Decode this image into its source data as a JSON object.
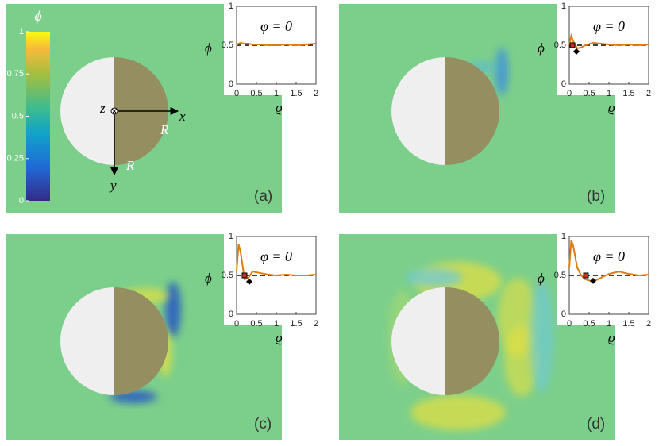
{
  "colorbar": {
    "label": "ϕ",
    "lim": [
      0,
      1
    ],
    "ticks": [
      0,
      0.25,
      0.5,
      0.75,
      1
    ]
  },
  "schematic": {
    "z": "z",
    "x": "x",
    "y": "y",
    "r_x": "R",
    "r_y": "R"
  },
  "chart_data": [
    {
      "type": "line",
      "panel_label": "(a)",
      "annotation": "φ = 0",
      "xlabel": "ϱ",
      "ylabel": "ϕ",
      "xlim": [
        0,
        2
      ],
      "ylim": [
        0,
        1
      ],
      "xticks": [
        0,
        0.5,
        1,
        1.5,
        2
      ],
      "yticks": [
        0,
        0.5,
        1
      ],
      "reference": 0.5,
      "x": [
        0,
        0.05,
        0.1,
        0.2,
        0.3,
        0.4,
        0.6,
        0.8,
        1,
        1.25,
        1.5,
        1.75,
        2
      ],
      "series": [
        {
          "color": "#e07b10",
          "values": [
            0.5,
            0.52,
            0.53,
            0.52,
            0.52,
            0.51,
            0.51,
            0.5,
            0.5,
            0.51,
            0.5,
            0.51,
            0.52
          ]
        }
      ]
    },
    {
      "type": "line",
      "panel_label": "(b)",
      "annotation": "φ = 0",
      "xlabel": "ϱ",
      "ylabel": "ϕ",
      "xlim": [
        0,
        2
      ],
      "ylim": [
        0,
        1
      ],
      "xticks": [
        0,
        0.5,
        1,
        1.5,
        2
      ],
      "yticks": [
        0,
        0.5,
        1
      ],
      "reference": 0.5,
      "x": [
        0,
        0.05,
        0.1,
        0.2,
        0.3,
        0.4,
        0.6,
        0.8,
        1,
        1.25,
        1.5,
        1.75,
        2
      ],
      "series": [
        {
          "color": "#e07b10",
          "values": [
            0.5,
            0.62,
            0.55,
            0.46,
            0.47,
            0.5,
            0.53,
            0.52,
            0.51,
            0.5,
            0.51,
            0.5,
            0.51
          ]
        }
      ],
      "square": {
        "x": 0.08,
        "y": 0.5
      },
      "diamond": {
        "x": 0.18,
        "y": 0.42
      }
    },
    {
      "type": "line",
      "panel_label": "(c)",
      "annotation": "φ = 0",
      "xlabel": "ϱ",
      "ylabel": "ϕ",
      "xlim": [
        0,
        2
      ],
      "ylim": [
        0,
        1
      ],
      "xticks": [
        0,
        0.5,
        1,
        1.5,
        2
      ],
      "yticks": [
        0,
        0.5,
        1
      ],
      "reference": 0.5,
      "x": [
        0,
        0.05,
        0.1,
        0.2,
        0.3,
        0.4,
        0.6,
        0.8,
        1,
        1.25,
        1.5,
        1.75,
        2
      ],
      "series": [
        {
          "color": "#e07b10",
          "values": [
            0.55,
            0.9,
            0.8,
            0.45,
            0.47,
            0.55,
            0.53,
            0.51,
            0.5,
            0.51,
            0.5,
            0.5,
            0.51
          ]
        }
      ],
      "square": {
        "x": 0.2,
        "y": 0.5
      },
      "diamond": {
        "x": 0.32,
        "y": 0.42
      }
    },
    {
      "type": "line",
      "panel_label": "(d)",
      "annotation": "φ = 0",
      "xlabel": "ϱ",
      "ylabel": "ϕ",
      "xlim": [
        0,
        2
      ],
      "ylim": [
        0,
        1
      ],
      "xticks": [
        0,
        0.5,
        1,
        1.5,
        2
      ],
      "yticks": [
        0,
        0.5,
        1
      ],
      "reference": 0.5,
      "x": [
        0,
        0.05,
        0.1,
        0.2,
        0.3,
        0.4,
        0.6,
        0.8,
        1,
        1.25,
        1.5,
        1.75,
        2
      ],
      "series": [
        {
          "color": "#e07b10",
          "values": [
            0.6,
            0.95,
            0.88,
            0.6,
            0.5,
            0.45,
            0.42,
            0.47,
            0.52,
            0.55,
            0.52,
            0.5,
            0.51
          ]
        }
      ],
      "square": {
        "x": 0.42,
        "y": 0.5
      },
      "diamond": {
        "x": 0.6,
        "y": 0.43
      }
    }
  ]
}
